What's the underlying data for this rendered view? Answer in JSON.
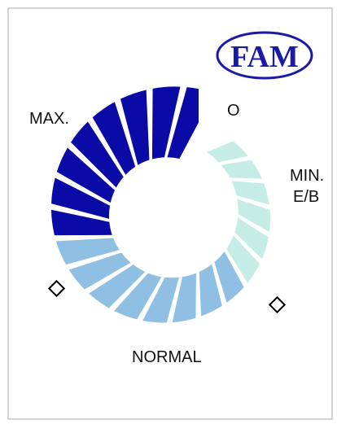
{
  "logo": "FAM",
  "labels": {
    "max": "MAX.",
    "off": "O",
    "min": "MIN.",
    "eb": "E/B",
    "normal": "NORMAL"
  }
}
